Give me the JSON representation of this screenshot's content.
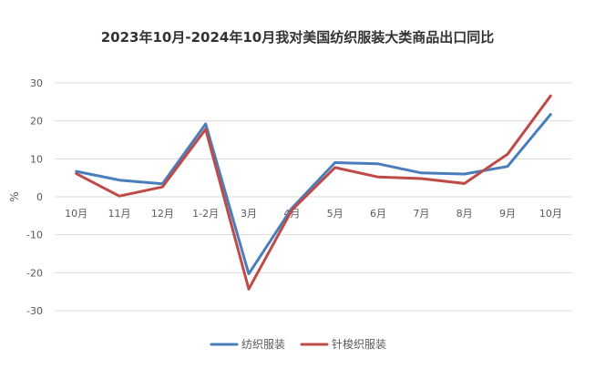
{
  "chart_data": {
    "type": "line",
    "title": "2023年10月-2024年10月我对美国纺织服装大类商品出口同比",
    "xlabel": "",
    "ylabel": "%",
    "ylim": [
      -30,
      30
    ],
    "yticks": [
      30,
      20,
      10,
      0,
      -10,
      -20,
      -30
    ],
    "grid": true,
    "legend_position": "bottom",
    "categories": [
      "10月",
      "11月",
      "12月",
      "1-2月",
      "3月",
      "4月",
      "5月",
      "6月",
      "7月",
      "8月",
      "9月",
      "10月"
    ],
    "series": [
      {
        "name": "纺织服装",
        "color": "#4A7EBB",
        "values": [
          6.7,
          4.4,
          3.4,
          19.2,
          -20.3,
          -3.0,
          9.0,
          8.7,
          6.3,
          6.0,
          8.0,
          21.7
        ]
      },
      {
        "name": "针梭织服装",
        "color": "#BE4B48",
        "values": [
          6.1,
          0.2,
          2.6,
          17.8,
          -24.3,
          -3.5,
          7.7,
          5.2,
          4.8,
          3.5,
          11.2,
          26.6
        ]
      }
    ]
  }
}
